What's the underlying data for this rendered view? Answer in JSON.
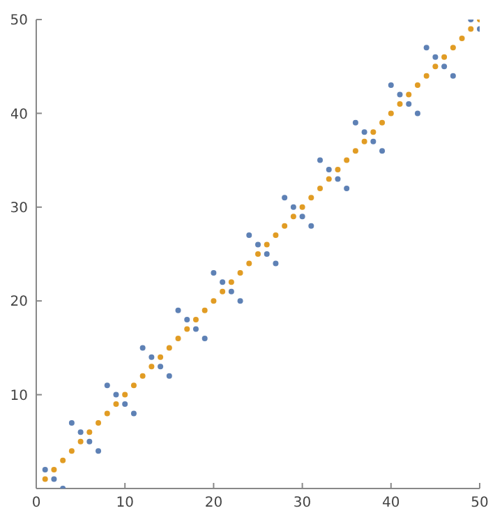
{
  "chart_data": {
    "type": "scatter",
    "x": [
      1,
      2,
      3,
      4,
      5,
      6,
      7,
      8,
      9,
      10,
      11,
      12,
      13,
      14,
      15,
      16,
      17,
      18,
      19,
      20,
      21,
      22,
      23,
      24,
      25,
      26,
      27,
      28,
      29,
      30,
      31,
      32,
      33,
      34,
      35,
      36,
      37,
      38,
      39,
      40,
      41,
      42,
      43,
      44,
      45,
      46,
      47,
      48,
      49,
      50
    ],
    "series": [
      {
        "color": "#5e81b5",
        "values": [
          2,
          1,
          0,
          7,
          6,
          5,
          4,
          11,
          10,
          9,
          8,
          15,
          14,
          13,
          12,
          19,
          18,
          17,
          16,
          23,
          22,
          21,
          20,
          27,
          26,
          25,
          24,
          31,
          30,
          29,
          28,
          35,
          34,
          33,
          32,
          39,
          38,
          37,
          36,
          43,
          42,
          41,
          40,
          47,
          46,
          45,
          44,
          null,
          50,
          49
        ]
      },
      {
        "color": "#e19c24",
        "values": [
          1,
          2,
          3,
          4,
          5,
          6,
          7,
          8,
          9,
          10,
          11,
          12,
          13,
          14,
          15,
          16,
          17,
          18,
          19,
          20,
          21,
          22,
          23,
          24,
          25,
          26,
          27,
          28,
          29,
          30,
          31,
          32,
          33,
          34,
          35,
          36,
          37,
          38,
          39,
          40,
          41,
          42,
          43,
          44,
          45,
          46,
          47,
          48,
          49,
          50
        ]
      }
    ],
    "xlim": [
      0,
      50
    ],
    "xticks": [
      0,
      10,
      20,
      30,
      40,
      50
    ],
    "ylim": [
      0,
      50
    ],
    "yticks": [
      10,
      20,
      30,
      40,
      50
    ],
    "marker": "circle",
    "grid": false
  }
}
